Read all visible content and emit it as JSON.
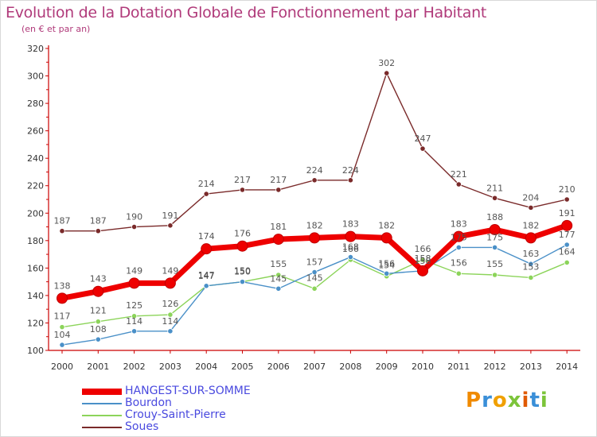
{
  "header": {
    "title": "Evolution de la Dotation Globale de Fonctionnement par Habitant",
    "subtitle": "(en € et par an)"
  },
  "logo": {
    "text": "Proxiti"
  },
  "colors": {
    "title": "#b03a7a",
    "axis": "#cc0000",
    "legend_text": "#4a4adf"
  },
  "chart_data": {
    "type": "line",
    "x": [
      2000,
      2001,
      2002,
      2003,
      2004,
      2005,
      2006,
      2007,
      2008,
      2009,
      2010,
      2011,
      2012,
      2013,
      2014
    ],
    "ylim": [
      100,
      320
    ],
    "yticks": [
      100,
      120,
      140,
      160,
      180,
      200,
      220,
      240,
      260,
      280,
      300,
      320
    ],
    "grid": false,
    "legend_position": "bottom-left",
    "series": [
      {
        "name": "HANGEST-SUR-SOMME",
        "color": "#ee0000",
        "values": [
          138,
          143,
          149,
          149,
          174,
          176,
          181,
          182,
          183,
          182,
          158,
          183,
          188,
          182,
          191
        ]
      },
      {
        "name": "Bourdon",
        "color": "#4a90c8",
        "values": [
          104,
          108,
          114,
          114,
          147,
          150,
          145,
          157,
          168,
          156,
          158,
          175,
          175,
          163,
          177
        ]
      },
      {
        "name": "Crouy-Saint-Pierre",
        "color": "#8cd45a",
        "values": [
          117,
          121,
          125,
          126,
          147,
          150,
          155,
          145,
          166,
          154,
          166,
          156,
          155,
          153,
          164
        ]
      },
      {
        "name": "Soues",
        "color": "#7a2a2a",
        "values": [
          187,
          187,
          190,
          191,
          214,
          217,
          217,
          224,
          224,
          302,
          247,
          221,
          211,
          204,
          210
        ]
      }
    ]
  }
}
